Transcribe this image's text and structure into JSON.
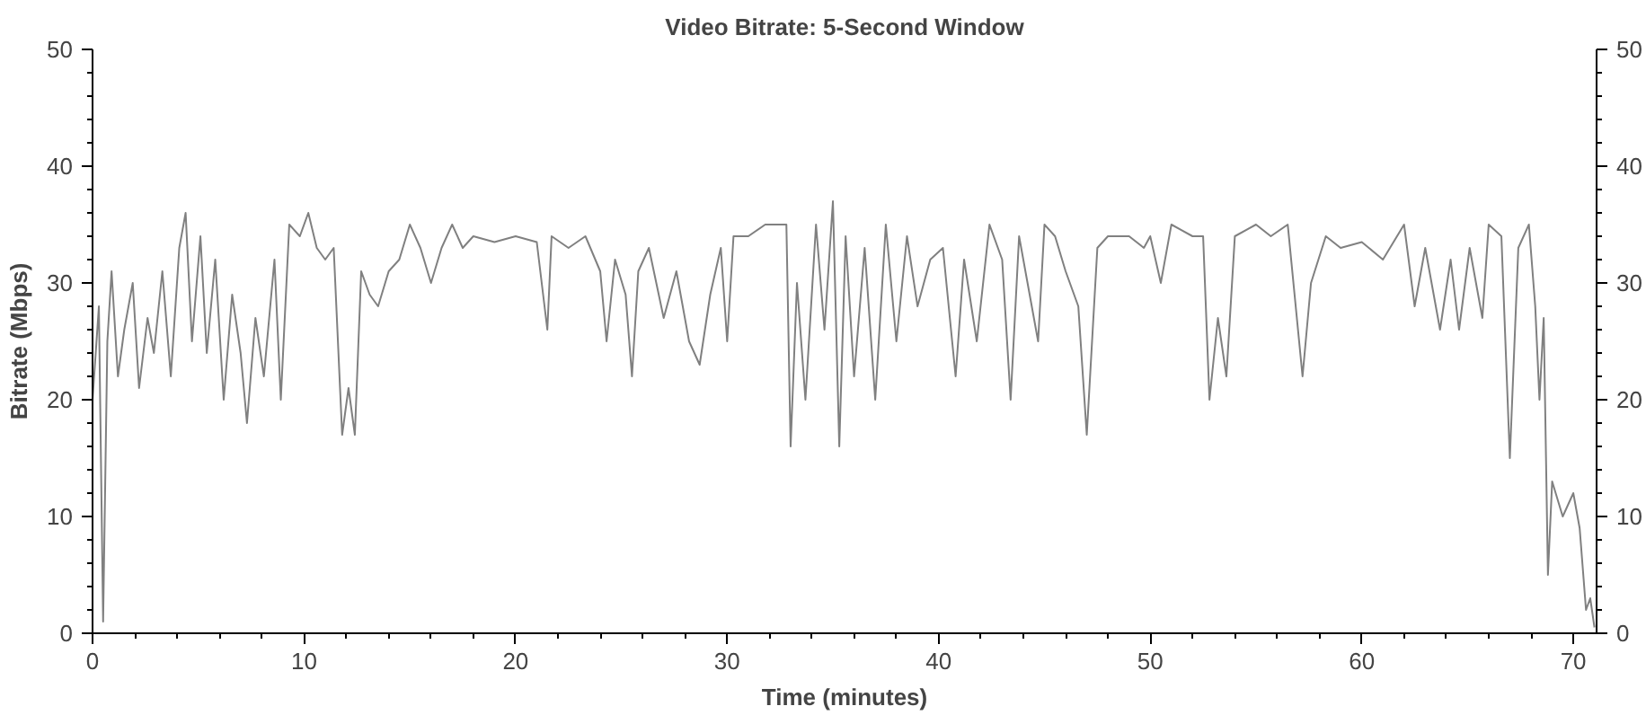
{
  "chart_data": {
    "type": "line",
    "title": "Video Bitrate: 5-Second Window",
    "xlabel": "Time (minutes)",
    "ylabel": "Bitrate (Mbps)",
    "xlim": [
      0,
      71.1
    ],
    "xticks": [
      0,
      {
        "value": 2,
        "label": null
      },
      {
        "value": 4,
        "label": null
      },
      {
        "value": 6,
        "label": null
      },
      {
        "value": 8,
        "label": null
      },
      10,
      {
        "value": 12,
        "label": null
      },
      {
        "value": 14,
        "label": null
      },
      {
        "value": 16,
        "label": null
      },
      {
        "value": 18,
        "label": null
      },
      20,
      {
        "value": 22,
        "label": null
      },
      {
        "value": 24,
        "label": null
      },
      {
        "value": 26,
        "label": null
      },
      {
        "value": 28,
        "label": null
      },
      30,
      {
        "value": 32,
        "label": null
      },
      {
        "value": 34,
        "label": null
      },
      {
        "value": 36,
        "label": null
      },
      {
        "value": 38,
        "label": null
      },
      40,
      {
        "value": 42,
        "label": null
      },
      {
        "value": 44,
        "label": null
      },
      {
        "value": 46,
        "label": null
      },
      {
        "value": 48,
        "label": null
      },
      50,
      {
        "value": 52,
        "label": null
      },
      {
        "value": 54,
        "label": null
      },
      {
        "value": 56,
        "label": null
      },
      {
        "value": 58,
        "label": null
      },
      60,
      {
        "value": 62,
        "label": null
      },
      {
        "value": 64,
        "label": null
      },
      {
        "value": 66,
        "label": null
      },
      {
        "value": 68,
        "label": null
      },
      70
    ],
    "ylim": [
      0,
      50
    ],
    "yticks": [
      0,
      {
        "value": 2,
        "label": null
      },
      {
        "value": 4,
        "label": null
      },
      {
        "value": 6,
        "label": null
      },
      {
        "value": 8,
        "label": null
      },
      10,
      {
        "value": 12,
        "label": null
      },
      {
        "value": 14,
        "label": null
      },
      {
        "value": 16,
        "label": null
      },
      {
        "value": 18,
        "label": null
      },
      20,
      {
        "value": 22,
        "label": null
      },
      {
        "value": 24,
        "label": null
      },
      {
        "value": 26,
        "label": null
      },
      {
        "value": 28,
        "label": null
      },
      30,
      {
        "value": 32,
        "label": null
      },
      {
        "value": 34,
        "label": null
      },
      {
        "value": 36,
        "label": null
      },
      {
        "value": 38,
        "label": null
      },
      40,
      {
        "value": 42,
        "label": null
      },
      {
        "value": 44,
        "label": null
      },
      {
        "value": 46,
        "label": null
      },
      {
        "value": 48,
        "label": null
      },
      50
    ],
    "y2lim": [
      0,
      50
    ],
    "y2ticks": [
      0,
      {
        "value": 2,
        "label": null
      },
      {
        "value": 4,
        "label": null
      },
      {
        "value": 6,
        "label": null
      },
      {
        "value": 8,
        "label": null
      },
      10,
      {
        "value": 12,
        "label": null
      },
      {
        "value": 14,
        "label": null
      },
      {
        "value": 16,
        "label": null
      },
      {
        "value": 18,
        "label": null
      },
      20,
      {
        "value": 22,
        "label": null
      },
      {
        "value": 24,
        "label": null
      },
      {
        "value": 26,
        "label": null
      },
      {
        "value": 28,
        "label": null
      },
      30,
      {
        "value": 32,
        "label": null
      },
      {
        "value": 34,
        "label": null
      },
      {
        "value": 36,
        "label": null
      },
      {
        "value": 38,
        "label": null
      },
      40,
      {
        "value": 42,
        "label": null
      },
      {
        "value": 44,
        "label": null
      },
      {
        "value": 46,
        "label": null
      },
      {
        "value": 48,
        "label": null
      },
      50
    ],
    "grid": false,
    "marker": "none",
    "line_style": "solid",
    "series": [
      {
        "color": "#808080",
        "x": [
          0.0,
          0.3,
          0.5,
          0.7,
          0.9,
          1.2,
          1.5,
          1.9,
          2.2,
          2.6,
          2.9,
          3.3,
          3.7,
          4.1,
          4.4,
          4.7,
          5.1,
          5.4,
          5.8,
          6.2,
          6.6,
          7.0,
          7.3,
          7.7,
          8.1,
          8.6,
          8.9,
          9.3,
          9.8,
          10.2,
          10.6,
          11.0,
          11.4,
          11.8,
          12.1,
          12.4,
          12.7,
          13.1,
          13.5,
          14.0,
          14.5,
          15.0,
          15.5,
          16.0,
          16.5,
          17.0,
          17.5,
          18.0,
          19.0,
          20.0,
          21.0,
          21.5,
          21.7,
          22.5,
          23.3,
          24.0,
          24.3,
          24.7,
          25.2,
          25.5,
          25.8,
          26.3,
          27.0,
          27.6,
          28.2,
          28.7,
          29.2,
          29.7,
          30.0,
          30.3,
          31.0,
          31.8,
          32.8,
          33.0,
          33.3,
          33.7,
          34.2,
          34.6,
          35.0,
          35.3,
          35.6,
          36.0,
          36.5,
          37.0,
          37.5,
          38.0,
          38.5,
          39.0,
          39.6,
          40.2,
          40.8,
          41.2,
          41.8,
          42.4,
          43.0,
          43.4,
          43.8,
          44.3,
          44.7,
          45.0,
          45.5,
          46.0,
          46.6,
          47.0,
          47.5,
          48.0,
          49.0,
          49.7,
          50.0,
          50.5,
          51.0,
          52.0,
          52.5,
          52.8,
          53.2,
          53.6,
          54.0,
          55.0,
          55.7,
          56.5,
          57.2,
          57.6,
          58.3,
          59.0,
          60.0,
          61.0,
          62.0,
          62.5,
          63.0,
          63.7,
          64.2,
          64.6,
          65.1,
          65.7,
          66.0,
          66.6,
          67.0,
          67.4,
          67.9,
          68.2,
          68.4,
          68.6,
          68.8,
          69.0,
          69.5,
          70.0,
          70.3,
          70.6,
          70.8,
          71.0
        ],
        "values": [
          20,
          28,
          1,
          25,
          31,
          22,
          26,
          30,
          21,
          27,
          24,
          31,
          22,
          33,
          36,
          25,
          34,
          24,
          32,
          20,
          29,
          24,
          18,
          27,
          22,
          32,
          20,
          35,
          34,
          36,
          33,
          32,
          33,
          17,
          21,
          17,
          31,
          29,
          28,
          31,
          32,
          35,
          33,
          30,
          33,
          35,
          33,
          34,
          33.5,
          34,
          33.5,
          26,
          34,
          33,
          34,
          31,
          25,
          32,
          29,
          22,
          31,
          33,
          27,
          31,
          25,
          23,
          29,
          33,
          25,
          34,
          34,
          35,
          35,
          16,
          30,
          20,
          35,
          26,
          37,
          16,
          34,
          22,
          33,
          20,
          35,
          25,
          34,
          28,
          32,
          33,
          22,
          32,
          25,
          35,
          32,
          20,
          34,
          29,
          25,
          35,
          34,
          31,
          28,
          17,
          33,
          34,
          34,
          33,
          34,
          30,
          35,
          34,
          34,
          20,
          27,
          22,
          34,
          35,
          34,
          35,
          22,
          30,
          34,
          33,
          33.5,
          32,
          35,
          28,
          33,
          26,
          32,
          26,
          33,
          27,
          35,
          34,
          15,
          33,
          35,
          28,
          20,
          27,
          5,
          13,
          10,
          12,
          9,
          2,
          3,
          0.5
        ]
      }
    ]
  }
}
